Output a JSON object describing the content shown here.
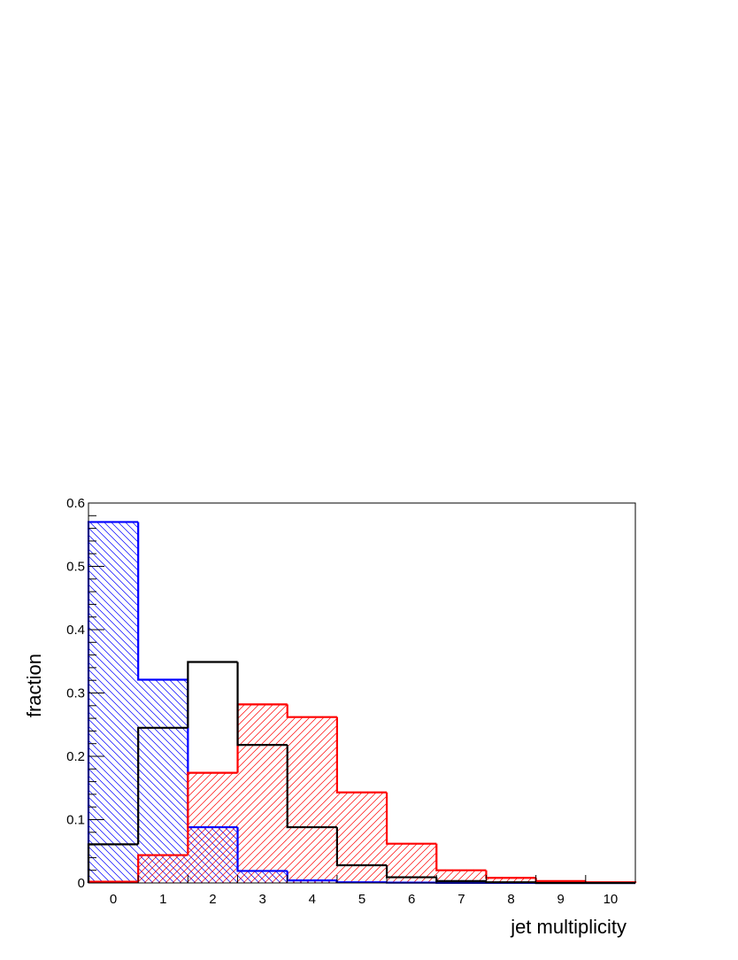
{
  "chart_data": {
    "type": "bar",
    "histogram": true,
    "xlabel": "jet multiplicity",
    "ylabel": "fraction",
    "x_ticks": [
      "0",
      "1",
      "2",
      "3",
      "4",
      "5",
      "6",
      "7",
      "8",
      "9",
      "10"
    ],
    "y_ticks": [
      "0",
      "0.1",
      "0.2",
      "0.3",
      "0.4",
      "0.5",
      "0.6"
    ],
    "xlim": [
      -0.5,
      10.5
    ],
    "ylim": [
      0,
      0.6
    ],
    "grid": false,
    "legend": "none",
    "bins": [
      0,
      1,
      2,
      3,
      4,
      5,
      6,
      7,
      8,
      9,
      10
    ],
    "series": [
      {
        "color": "#0000ff",
        "fill": "hatch-backslash",
        "values": [
          0.57,
          0.321,
          0.088,
          0.019,
          0.004,
          0.001,
          0.0005,
          0.0002,
          0.0001,
          0.0,
          0.0
        ]
      },
      {
        "color": "#ff0000",
        "fill": "hatch-slash",
        "values": [
          0.002,
          0.044,
          0.174,
          0.282,
          0.262,
          0.143,
          0.062,
          0.02,
          0.008,
          0.003,
          0.001
        ]
      },
      {
        "color": "#000000",
        "fill": "none",
        "values": [
          0.061,
          0.245,
          0.349,
          0.218,
          0.088,
          0.028,
          0.009,
          0.003,
          0.001,
          0.0,
          0.0
        ]
      }
    ]
  }
}
